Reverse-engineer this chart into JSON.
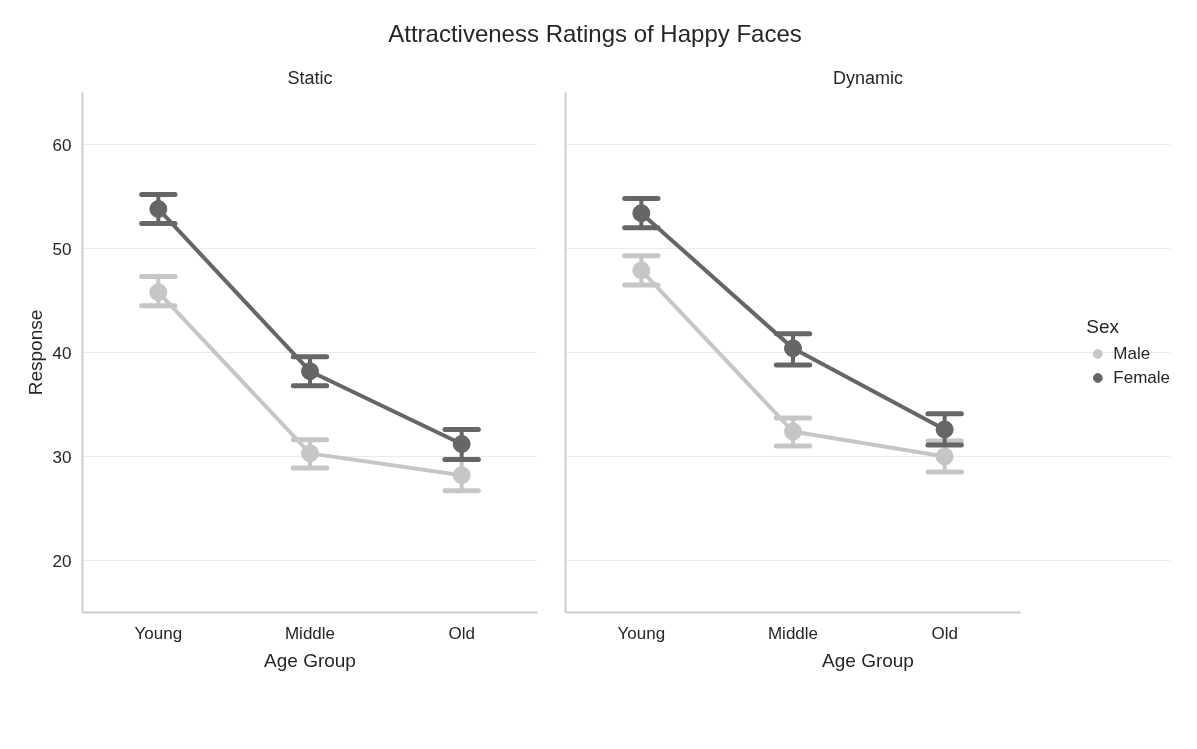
{
  "chart_data": [
    {
      "type": "line",
      "title": "Attractiveness Ratings of Happy Faces",
      "subtitle": "Static",
      "xlabel": "Age Group",
      "ylabel": "Response",
      "categories": [
        "Young",
        "Middle",
        "Old"
      ],
      "series": [
        {
          "color": "#c6c6c6",
          "values": [
            45.8,
            30.3,
            28.2
          ],
          "errors": [
            [
              44.5,
              47.3
            ],
            [
              28.9,
              31.6
            ],
            [
              26.7,
              29.7
            ]
          ]
        },
        {
          "color": "#666666",
          "values": [
            53.8,
            38.2,
            31.2
          ],
          "errors": [
            [
              52.4,
              55.2
            ],
            [
              36.8,
              39.6
            ],
            [
              29.7,
              32.6
            ]
          ]
        }
      ],
      "ylim": [
        15,
        65
      ],
      "yticks": [
        20,
        30,
        40,
        50,
        60
      ],
      "grid": "y",
      "marker": "circle",
      "legend": false
    },
    {
      "type": "line",
      "subtitle": "Dynamic",
      "xlabel": "Age Group",
      "categories": [
        "Young",
        "Middle",
        "Old"
      ],
      "series": [
        {
          "name": "Male",
          "color": "#c6c6c6",
          "values": [
            47.9,
            32.4,
            30.0
          ],
          "errors": [
            [
              46.5,
              49.3
            ],
            [
              31.0,
              33.7
            ],
            [
              28.5,
              31.5
            ]
          ]
        },
        {
          "name": "Female",
          "color": "#666666",
          "values": [
            53.4,
            40.4,
            32.6
          ],
          "errors": [
            [
              52.0,
              54.8
            ],
            [
              38.8,
              41.8
            ],
            [
              31.1,
              34.1
            ]
          ]
        }
      ],
      "ylim": [
        15,
        65
      ],
      "yticks": [
        20,
        30,
        40,
        50,
        60
      ],
      "grid": "y",
      "marker": "circle",
      "legend": "right",
      "legend_title": "Sex",
      "tick_labels": "x"
    }
  ]
}
